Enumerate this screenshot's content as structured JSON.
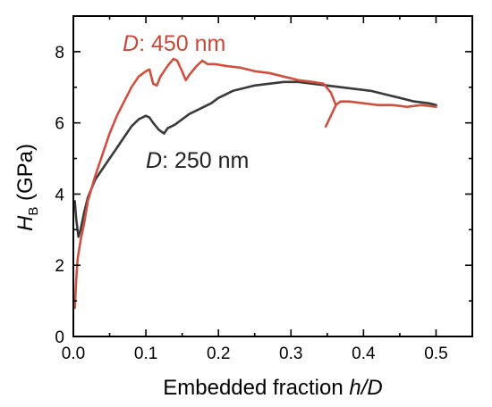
{
  "chart_data": {
    "type": "line",
    "xlabel": {
      "main": "Embedded fraction ",
      "italic": "h/D"
    },
    "ylabel": {
      "italic": "H",
      "subscript": "B",
      "rest": " (GPa)"
    },
    "xlim": [
      0,
      0.55
    ],
    "ylim": [
      0,
      9
    ],
    "x_ticks": [
      "0.0",
      "0.1",
      "0.2",
      "0.3",
      "0.4",
      "0.5"
    ],
    "y_ticks": [
      "0",
      "2",
      "4",
      "6",
      "8"
    ],
    "grid": false,
    "annotations": [
      {
        "italic": "D",
        "rest": ": 450 nm",
        "color": "#c8483a"
      },
      {
        "italic": "D",
        "rest": ": 250 nm",
        "color": "#222222"
      }
    ],
    "series": [
      {
        "name": "D: 450 nm",
        "color": "#d0503f",
        "points": [
          [
            0.002,
            0.8
          ],
          [
            0.004,
            1.6
          ],
          [
            0.006,
            2.2
          ],
          [
            0.01,
            2.7
          ],
          [
            0.015,
            3.2
          ],
          [
            0.02,
            3.8
          ],
          [
            0.03,
            4.5
          ],
          [
            0.04,
            5.1
          ],
          [
            0.05,
            5.7
          ],
          [
            0.06,
            6.2
          ],
          [
            0.07,
            6.6
          ],
          [
            0.08,
            7.0
          ],
          [
            0.09,
            7.3
          ],
          [
            0.1,
            7.45
          ],
          [
            0.105,
            7.5
          ],
          [
            0.11,
            7.1
          ],
          [
            0.115,
            7.05
          ],
          [
            0.12,
            7.3
          ],
          [
            0.13,
            7.6
          ],
          [
            0.138,
            7.8
          ],
          [
            0.143,
            7.75
          ],
          [
            0.15,
            7.45
          ],
          [
            0.155,
            7.2
          ],
          [
            0.16,
            7.35
          ],
          [
            0.17,
            7.6
          ],
          [
            0.178,
            7.75
          ],
          [
            0.185,
            7.65
          ],
          [
            0.195,
            7.65
          ],
          [
            0.21,
            7.6
          ],
          [
            0.23,
            7.55
          ],
          [
            0.25,
            7.45
          ],
          [
            0.27,
            7.4
          ],
          [
            0.29,
            7.3
          ],
          [
            0.31,
            7.2
          ],
          [
            0.33,
            7.15
          ],
          [
            0.345,
            7.1
          ],
          [
            0.355,
            6.85
          ],
          [
            0.362,
            6.5
          ],
          [
            0.368,
            6.6
          ],
          [
            0.38,
            6.6
          ],
          [
            0.4,
            6.55
          ],
          [
            0.42,
            6.5
          ],
          [
            0.44,
            6.5
          ],
          [
            0.46,
            6.45
          ],
          [
            0.48,
            6.5
          ],
          [
            0.5,
            6.45
          ]
        ],
        "branch": [
          [
            0.362,
            6.5
          ],
          [
            0.355,
            6.2
          ],
          [
            0.348,
            5.9
          ]
        ]
      },
      {
        "name": "D: 250 nm",
        "color": "#3a3a3a",
        "points": [
          [
            0.002,
            3.8
          ],
          [
            0.004,
            3.3
          ],
          [
            0.007,
            2.8
          ],
          [
            0.01,
            3.0
          ],
          [
            0.015,
            3.5
          ],
          [
            0.02,
            3.9
          ],
          [
            0.03,
            4.4
          ],
          [
            0.04,
            4.7
          ],
          [
            0.05,
            5.0
          ],
          [
            0.06,
            5.3
          ],
          [
            0.07,
            5.6
          ],
          [
            0.08,
            5.9
          ],
          [
            0.09,
            6.1
          ],
          [
            0.1,
            6.2
          ],
          [
            0.105,
            6.15
          ],
          [
            0.11,
            6.0
          ],
          [
            0.118,
            5.8
          ],
          [
            0.125,
            5.7
          ],
          [
            0.13,
            5.85
          ],
          [
            0.14,
            5.95
          ],
          [
            0.15,
            6.1
          ],
          [
            0.16,
            6.25
          ],
          [
            0.17,
            6.35
          ],
          [
            0.18,
            6.45
          ],
          [
            0.19,
            6.55
          ],
          [
            0.2,
            6.7
          ],
          [
            0.21,
            6.8
          ],
          [
            0.22,
            6.9
          ],
          [
            0.23,
            6.95
          ],
          [
            0.24,
            7.0
          ],
          [
            0.25,
            7.05
          ],
          [
            0.27,
            7.1
          ],
          [
            0.29,
            7.15
          ],
          [
            0.31,
            7.15
          ],
          [
            0.33,
            7.1
          ],
          [
            0.35,
            7.05
          ],
          [
            0.37,
            7.0
          ],
          [
            0.39,
            6.95
          ],
          [
            0.41,
            6.9
          ],
          [
            0.43,
            6.8
          ],
          [
            0.45,
            6.7
          ],
          [
            0.47,
            6.6
          ],
          [
            0.49,
            6.55
          ],
          [
            0.5,
            6.5
          ]
        ]
      }
    ]
  }
}
